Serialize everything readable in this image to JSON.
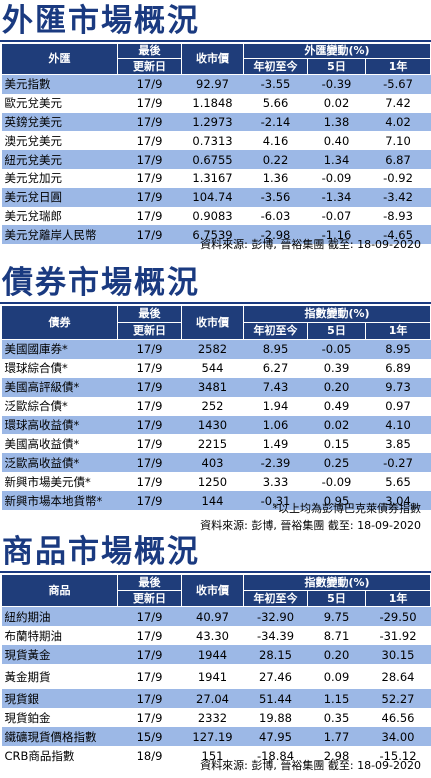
{
  "fx": {
    "title": "外匯市場概況",
    "headers": {
      "name": "外匯",
      "date1": "最後",
      "date2": "更新日",
      "close": "收市價",
      "change": "外匯變動(%)",
      "ytd": "年初至今",
      "d5": "5日",
      "y1": "1年"
    },
    "rows": [
      [
        "美元指數",
        "17/9",
        "92.97",
        "-3.55",
        "-0.39",
        "-5.67"
      ],
      [
        "歐元兌美元",
        "17/9",
        "1.1848",
        "5.66",
        "0.02",
        "7.42"
      ],
      [
        "英鎊兌美元",
        "17/9",
        "1.2973",
        "-2.14",
        "1.38",
        "4.02"
      ],
      [
        "澳元兌美元",
        "17/9",
        "0.7313",
        "4.16",
        "0.40",
        "7.10"
      ],
      [
        "紐元兌美元",
        "17/9",
        "0.6755",
        "0.22",
        "1.34",
        "6.87"
      ],
      [
        "美元兌加元",
        "17/9",
        "1.3167",
        "1.36",
        "-0.09",
        "-0.92"
      ],
      [
        "美元兌日圓",
        "17/9",
        "104.74",
        "-3.56",
        "-1.34",
        "-3.42"
      ],
      [
        "美元兌瑞郎",
        "17/9",
        "0.9083",
        "-6.03",
        "-0.07",
        "-8.93"
      ],
      [
        "美元兌離岸人民幣",
        "17/9",
        "6.7539",
        "-2.98",
        "-1.16",
        "-4.65"
      ]
    ],
    "source": "資料來源: 彭博, 晉裕集團 截至: 18-09-2020"
  },
  "bond": {
    "title": "債券市場概況",
    "headers": {
      "name": "債券",
      "date1": "最後",
      "date2": "更新日",
      "close": "收市價",
      "change": "指數變動(%)",
      "ytd": "年初至今",
      "d5": "5日",
      "y1": "1年"
    },
    "rows": [
      [
        "美國國庫券*",
        "17/9",
        "2582",
        "8.95",
        "-0.05",
        "8.95"
      ],
      [
        "環球綜合債*",
        "17/9",
        "544",
        "6.27",
        "0.39",
        "6.89"
      ],
      [
        "美國高評級債*",
        "17/9",
        "3481",
        "7.43",
        "0.20",
        "9.73"
      ],
      [
        "泛歐綜合債*",
        "17/9",
        "252",
        "1.94",
        "0.49",
        "0.97"
      ],
      [
        "環球高收益債*",
        "17/9",
        "1430",
        "1.06",
        "0.02",
        "4.10"
      ],
      [
        "美國高收益債*",
        "17/9",
        "2215",
        "1.49",
        "0.15",
        "3.85"
      ],
      [
        "泛歐高收益債*",
        "17/9",
        "403",
        "-2.39",
        "0.25",
        "-0.27"
      ],
      [
        "新興市場美元債*",
        "17/9",
        "1250",
        "3.33",
        "-0.09",
        "5.65"
      ],
      [
        "新興市場本地貨幣*",
        "17/9",
        "144",
        "-0.31",
        "0.95",
        "3.04"
      ]
    ],
    "note": "*以上均為彭博巴克萊債券指數",
    "source": "資料來源: 彭博, 晉裕集團 截至: 18-09-2020"
  },
  "commodity": {
    "title": "商品市場概況",
    "headers": {
      "name": "商品",
      "date1": "最後",
      "date2": "更新日",
      "close": "收市價",
      "change": "指數變動(%)",
      "ytd": "年初至今",
      "d5": "5日",
      "y1": "1年"
    },
    "rows": [
      [
        "紐約期油",
        "17/9",
        "40.97",
        "-32.90",
        "9.75",
        "-29.50"
      ],
      [
        "布蘭特期油",
        "17/9",
        "43.30",
        "-34.39",
        "8.71",
        "-31.92"
      ],
      [
        "現貨黃金",
        "17/9",
        "1944",
        "28.15",
        "0.20",
        "30.15"
      ],
      [
        "黃金期貨",
        "17/9",
        "1941",
        "27.46",
        "0.09",
        "28.64"
      ],
      [
        "現貨銀",
        "17/9",
        "27.04",
        "51.44",
        "1.15",
        "52.27"
      ],
      [
        "現貨鉑金",
        "17/9",
        "2332",
        "19.88",
        "0.35",
        "46.56"
      ],
      [
        "鐵礦現貨價格指數",
        "15/9",
        "127.19",
        "47.95",
        "1.77",
        "34.00"
      ],
      [
        "CRB商品指數",
        "18/9",
        "151",
        "-18.84",
        "2.98",
        "-15.12"
      ]
    ],
    "source": "資料來源: 彭博, 晉裕集團 截至: 18-09-2020"
  }
}
